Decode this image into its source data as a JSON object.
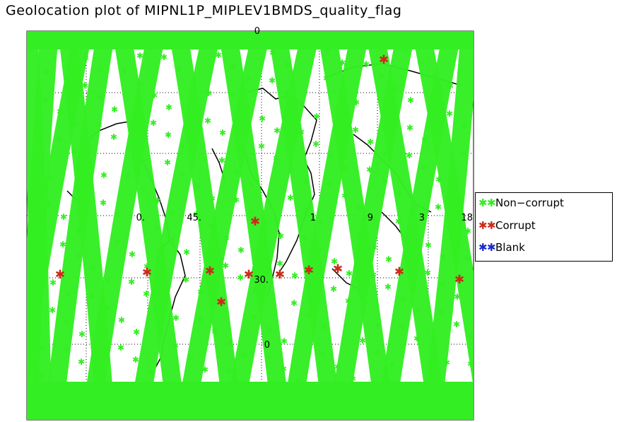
{
  "title": "Geolocation plot of MIPNL1P_MIPLEV1BMDS_quality_flag",
  "colors": {
    "non_corrupt": "#33ee22",
    "corrupt": "#cc2a1a",
    "blank": "#1a2bcc",
    "coast": "#000000",
    "grid": "#000000",
    "frame": "#000000"
  },
  "legend": {
    "items": [
      {
        "label": "Non−corrupt",
        "color_key": "non_corrupt"
      },
      {
        "label": "Corrupt",
        "color_key": "corrupt"
      },
      {
        "label": "Blank",
        "color_key": "blank"
      }
    ]
  },
  "grid_labels": {
    "longitude": [
      "0.",
      "45.",
      "1",
      "9",
      "3",
      "18"
    ],
    "latitude": [
      "30.",
      "0",
      "0"
    ]
  },
  "chart_data": {
    "type": "scatter",
    "title": "Geolocation plot of MIPNL1P_MIPLEV1BMDS_quality_flag",
    "grid": true,
    "legend_placement": "right",
    "series": [
      {
        "name": "Non−corrupt",
        "points": "dense orbit swaths (ascending/descending ground tracks)"
      },
      {
        "name": "Corrupt",
        "points": "isolated markers"
      },
      {
        "name": "Blank",
        "points": []
      }
    ]
  }
}
